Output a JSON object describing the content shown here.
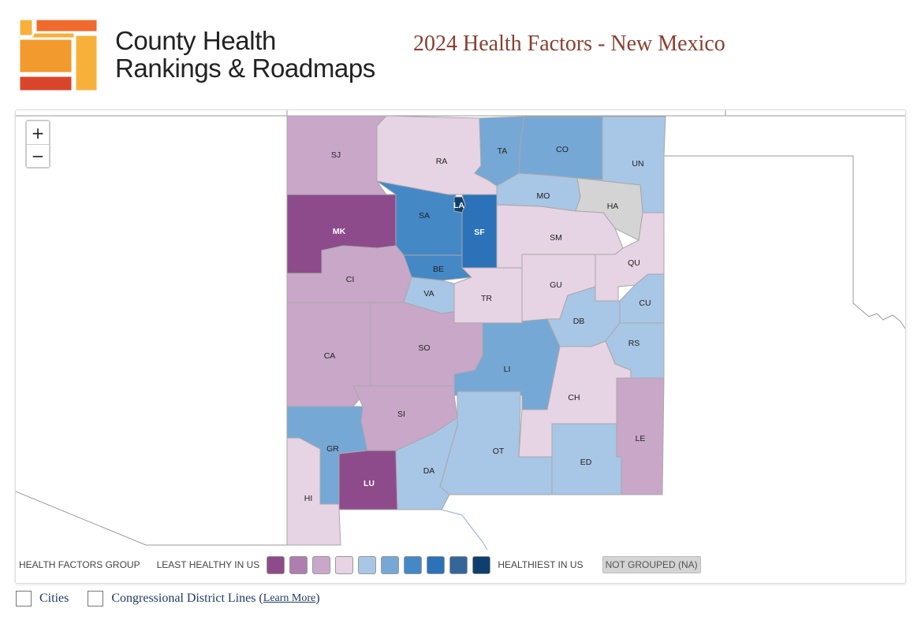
{
  "header": {
    "brand_line1": "County Health",
    "brand_line2": "Rankings & Roadmaps",
    "page_title": "2024 Health Factors - New Mexico"
  },
  "colors": {
    "logo_orange": "#f29a2e",
    "logo_yellow": "#f7b13b",
    "logo_red": "#d9452b",
    "title_color": "#8b3e2f",
    "not_grouped": "#d4d4d4"
  },
  "zoom": {
    "in": "+",
    "out": "−"
  },
  "legend": {
    "title": "HEALTH FACTORS GROUP",
    "low_label": "LEAST HEALTHY IN US",
    "high_label": "HEALTHIEST IN US",
    "na_label": "NOT GROUPED (NA)",
    "swatches": [
      "#8e4b8c",
      "#ad7eae",
      "#c9a7c8",
      "#e6d3e3",
      "#a8c6e5",
      "#76a8d6",
      "#4488c6",
      "#2c72b8",
      "#356699",
      "#0f3f6e"
    ]
  },
  "counties": [
    {
      "abbr": "SJ",
      "group": 2
    },
    {
      "abbr": "RA",
      "group": 3
    },
    {
      "abbr": "TA",
      "group": 5
    },
    {
      "abbr": "CO",
      "group": 5
    },
    {
      "abbr": "UN",
      "group": 4
    },
    {
      "abbr": "MK",
      "group": 0
    },
    {
      "abbr": "SA",
      "group": 6
    },
    {
      "abbr": "LA",
      "group": 9
    },
    {
      "abbr": "SF",
      "group": 7
    },
    {
      "abbr": "MO",
      "group": 4
    },
    {
      "abbr": "HA",
      "group": "NA"
    },
    {
      "abbr": "SM",
      "group": 3
    },
    {
      "abbr": "QU",
      "group": 3
    },
    {
      "abbr": "CI",
      "group": 2
    },
    {
      "abbr": "BE",
      "group": 6
    },
    {
      "abbr": "VA",
      "group": 4
    },
    {
      "abbr": "TR",
      "group": 3
    },
    {
      "abbr": "GU",
      "group": 3
    },
    {
      "abbr": "CU",
      "group": 4
    },
    {
      "abbr": "DB",
      "group": 4
    },
    {
      "abbr": "RS",
      "group": 4
    },
    {
      "abbr": "CA",
      "group": 2
    },
    {
      "abbr": "SO",
      "group": 2
    },
    {
      "abbr": "LI",
      "group": 5
    },
    {
      "abbr": "CH",
      "group": 3
    },
    {
      "abbr": "SI",
      "group": 2
    },
    {
      "abbr": "LE",
      "group": 2
    },
    {
      "abbr": "GR",
      "group": 5
    },
    {
      "abbr": "OT",
      "group": 4
    },
    {
      "abbr": "ED",
      "group": 4
    },
    {
      "abbr": "LU",
      "group": 0
    },
    {
      "abbr": "DA",
      "group": 4
    },
    {
      "abbr": "HI",
      "group": 3
    }
  ],
  "options": {
    "cities": "Cities",
    "districts": "Congressional District Lines (",
    "learn_more": "Learn More",
    "close_paren": ")"
  }
}
